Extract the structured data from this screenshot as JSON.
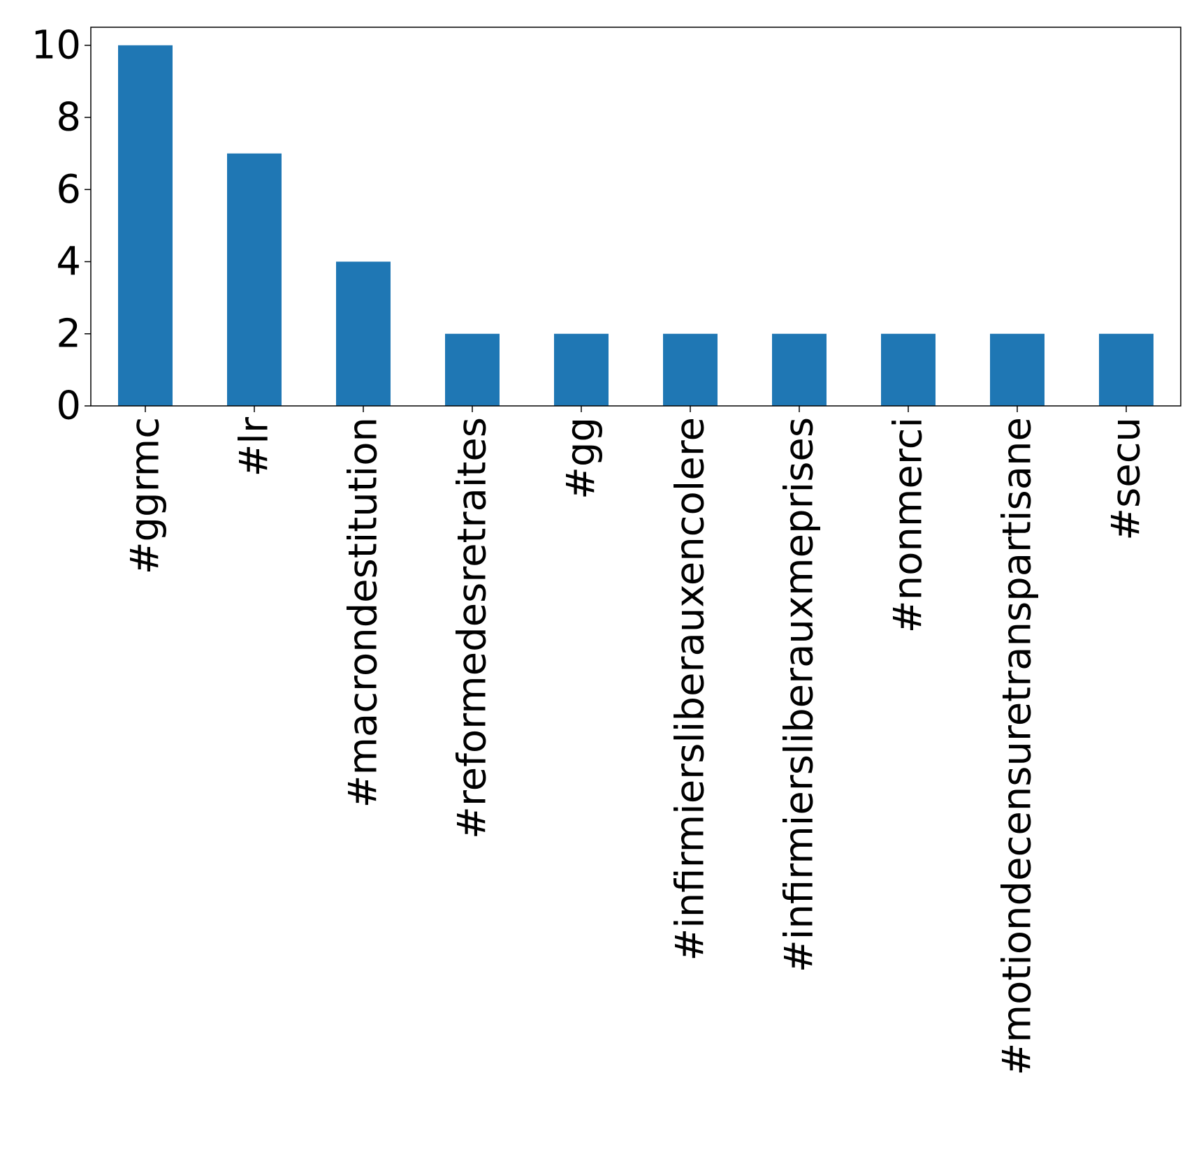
{
  "chart_data": {
    "type": "bar",
    "title": "",
    "xlabel": "",
    "ylabel": "",
    "categories": [
      "#ggrmc",
      "#lr",
      "#macrondestitution",
      "#reformedesretraites",
      "#gg",
      "#infirmiersliberauxencolere",
      "#infirmiersliberauxmeprises",
      "#nonmerci",
      "#motiondecensuretranspartisane",
      "#secu"
    ],
    "values": [
      10,
      7,
      4,
      2,
      2,
      2,
      2,
      2,
      2,
      2
    ],
    "ylim": [
      0,
      10.5
    ],
    "yticks": [
      0,
      2,
      4,
      6,
      8,
      10
    ],
    "ytick_labels": [
      "0",
      "2",
      "4",
      "6",
      "8",
      "10"
    ],
    "grid": false,
    "legend": "none",
    "bar_color": "#1f77b4"
  }
}
